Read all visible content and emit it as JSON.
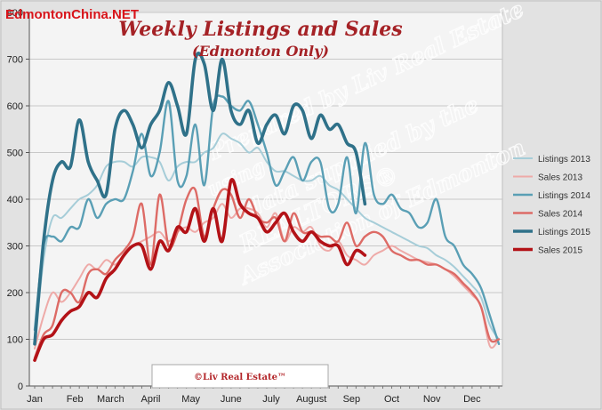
{
  "site_brand": "EdmontonChina.NET",
  "colors": {
    "Listings 2013": "#a6cdd8",
    "Sales 2013": "#eeaaa8",
    "Listings 2014": "#5a9fb5",
    "Sales 2014": "#dd6b66",
    "Listings 2015": "#2f7189",
    "Sales 2015": "#b31217",
    "title": "#a52226",
    "plot_bg": "#f4f4f4",
    "grid": "#c8c8c8"
  },
  "watermark": {
    "line1": "Prepared by Liv Real Estate",
    "line2": "using",
    "line3": "data supplied by the",
    "line4": "REALTORS®",
    "line5": "Association of Edmonton"
  },
  "credit": "©Liv Real Estate™",
  "chart_data": {
    "type": "line",
    "title": "Weekly Listings and Sales",
    "subtitle": "(Edmonton Only)",
    "xlabel": "",
    "ylabel": "",
    "x_unit": "week of year",
    "xlim": [
      1,
      53
    ],
    "ylim": [
      0,
      800
    ],
    "yticks": [
      0,
      100,
      200,
      300,
      400,
      500,
      600,
      700,
      800
    ],
    "ytick_labels": [
      "0",
      "100",
      "200",
      "300",
      "400",
      "500",
      "600",
      "700",
      "800"
    ],
    "months": [
      {
        "label": "Jan",
        "week": 1
      },
      {
        "label": "Feb",
        "week": 5.5
      },
      {
        "label": "March",
        "week": 9.5
      },
      {
        "label": "April",
        "week": 14
      },
      {
        "label": "May",
        "week": 18.5
      },
      {
        "label": "June",
        "week": 23
      },
      {
        "label": "July",
        "week": 27.5
      },
      {
        "label": "August",
        "week": 32
      },
      {
        "label": "Sep",
        "week": 36.5
      },
      {
        "label": "Oct",
        "week": 41
      },
      {
        "label": "Nov",
        "week": 45.5
      },
      {
        "label": "Dec",
        "week": 50
      }
    ],
    "grid": true,
    "legend": "right",
    "series": [
      {
        "name": "Listings 2013",
        "x": [
          1,
          2,
          3,
          4,
          5,
          6,
          7,
          8,
          9,
          10,
          11,
          12,
          13,
          14,
          15,
          16,
          17,
          18,
          19,
          20,
          21,
          22,
          23,
          24,
          25,
          26,
          27,
          28,
          29,
          30,
          31,
          32,
          33,
          34,
          35,
          36,
          37,
          38,
          39,
          40,
          41,
          42,
          43,
          44,
          45,
          46,
          47,
          48,
          49,
          50,
          51,
          52,
          53
        ],
        "values": [
          90,
          270,
          360,
          360,
          380,
          400,
          410,
          430,
          470,
          480,
          480,
          470,
          490,
          490,
          480,
          440,
          470,
          480,
          480,
          500,
          510,
          540,
          530,
          520,
          500,
          510,
          480,
          460,
          460,
          450,
          440,
          440,
          450,
          430,
          420,
          400,
          380,
          360,
          350,
          340,
          330,
          320,
          310,
          300,
          295,
          280,
          270,
          255,
          235,
          215,
          190,
          130,
          100
        ]
      },
      {
        "name": "Sales 2013",
        "x": [
          1,
          2,
          3,
          4,
          5,
          6,
          7,
          8,
          9,
          10,
          11,
          12,
          13,
          14,
          15,
          16,
          17,
          18,
          19,
          20,
          21,
          22,
          23,
          24,
          25,
          26,
          27,
          28,
          29,
          30,
          31,
          32,
          33,
          34,
          35,
          36,
          37,
          38,
          39,
          40,
          41,
          42,
          43,
          44,
          45,
          46,
          47,
          48,
          49,
          50,
          51,
          52,
          53
        ],
        "values": [
          80,
          150,
          200,
          180,
          200,
          230,
          260,
          250,
          270,
          260,
          280,
          300,
          310,
          320,
          330,
          310,
          330,
          340,
          330,
          350,
          360,
          390,
          360,
          380,
          380,
          370,
          340,
          370,
          310,
          340,
          330,
          340,
          300,
          290,
          310,
          280,
          270,
          260,
          280,
          290,
          300,
          290,
          280,
          270,
          265,
          260,
          250,
          235,
          215,
          195,
          170,
          85,
          100
        ]
      },
      {
        "name": "Listings 2014",
        "x": [
          1,
          2,
          3,
          4,
          5,
          6,
          7,
          8,
          9,
          10,
          11,
          12,
          13,
          14,
          15,
          16,
          17,
          18,
          19,
          20,
          21,
          22,
          23,
          24,
          25,
          26,
          27,
          28,
          29,
          30,
          31,
          32,
          33,
          34,
          35,
          36,
          37,
          38,
          39,
          40,
          41,
          42,
          43,
          44,
          45,
          46,
          47,
          48,
          49,
          50,
          51,
          52,
          53
        ],
        "values": [
          120,
          300,
          320,
          310,
          340,
          340,
          400,
          360,
          390,
          400,
          400,
          460,
          540,
          450,
          500,
          610,
          440,
          450,
          560,
          430,
          600,
          620,
          600,
          590,
          610,
          560,
          500,
          430,
          460,
          490,
          440,
          480,
          480,
          380,
          390,
          490,
          370,
          520,
          410,
          390,
          410,
          380,
          370,
          340,
          350,
          400,
          320,
          300,
          260,
          240,
          210,
          150,
          90
        ]
      },
      {
        "name": "Sales 2014",
        "x": [
          1,
          2,
          3,
          4,
          5,
          6,
          7,
          8,
          9,
          10,
          11,
          12,
          13,
          14,
          15,
          16,
          17,
          18,
          19,
          20,
          21,
          22,
          23,
          24,
          25,
          26,
          27,
          28,
          29,
          30,
          31,
          32,
          33,
          34,
          35,
          36,
          37,
          38,
          39,
          40,
          41,
          42,
          43,
          44,
          45,
          46,
          47,
          48,
          49,
          50,
          51,
          52,
          53
        ],
        "values": [
          60,
          110,
          130,
          200,
          200,
          180,
          240,
          250,
          240,
          270,
          290,
          320,
          390,
          260,
          410,
          300,
          330,
          400,
          420,
          320,
          380,
          420,
          410,
          360,
          400,
          360,
          350,
          360,
          310,
          370,
          330,
          330,
          320,
          320,
          310,
          350,
          300,
          320,
          330,
          320,
          290,
          280,
          270,
          270,
          260,
          260,
          250,
          240,
          220,
          200,
          170,
          100,
          100
        ]
      },
      {
        "name": "Listings 2015",
        "x": [
          1,
          2,
          3,
          4,
          5,
          6,
          7,
          8,
          9,
          10,
          11,
          12,
          13,
          14,
          15,
          16,
          17,
          18,
          19,
          20,
          21,
          22,
          23,
          24,
          25,
          26,
          27,
          28,
          29,
          30,
          31,
          32,
          33,
          34,
          35,
          36,
          37,
          38
        ],
        "values": [
          90,
          310,
          440,
          480,
          470,
          570,
          480,
          440,
          410,
          550,
          590,
          560,
          510,
          560,
          590,
          650,
          600,
          540,
          700,
          690,
          590,
          700,
          590,
          560,
          590,
          520,
          560,
          580,
          540,
          600,
          590,
          530,
          580,
          550,
          560,
          520,
          500,
          390
        ]
      },
      {
        "name": "Sales 2015",
        "x": [
          1,
          2,
          3,
          4,
          5,
          6,
          7,
          8,
          9,
          10,
          11,
          12,
          13,
          14,
          15,
          16,
          17,
          18,
          19,
          20,
          21,
          22,
          23,
          24,
          25,
          26,
          27,
          28,
          29,
          30,
          31,
          32,
          33,
          34,
          35,
          36,
          37,
          38
        ],
        "values": [
          55,
          100,
          110,
          140,
          160,
          170,
          200,
          190,
          230,
          250,
          280,
          300,
          300,
          250,
          310,
          290,
          340,
          330,
          380,
          310,
          380,
          310,
          440,
          390,
          370,
          360,
          330,
          350,
          370,
          330,
          310,
          330,
          310,
          300,
          300,
          260,
          290,
          280
        ]
      }
    ]
  }
}
